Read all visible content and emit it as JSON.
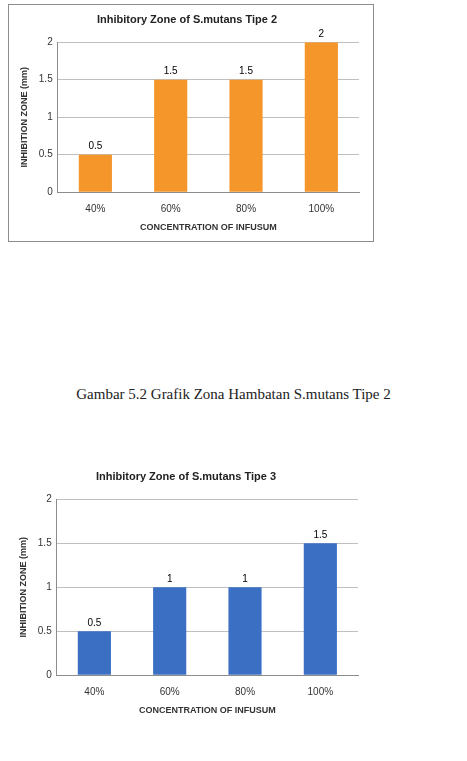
{
  "chart_data": [
    {
      "type": "bar",
      "title": "Inhibitory Zone of S.mutans Tipe 2",
      "x_label": "CONCENTRATION OF INFUSUM",
      "y_label": "INHIBITION ZONE (mm)",
      "caption": "Gambar 5.2 Grafik Zona Hambatan S.mutans Tipe 2",
      "categories": [
        "40%",
        "60%",
        "80%",
        "100%"
      ],
      "values": [
        0.5,
        1.5,
        1.5,
        2
      ],
      "color": "#f4962a",
      "ylim": [
        0,
        2
      ],
      "yticks": [
        0,
        0.5,
        1,
        1.5,
        2
      ],
      "grid": true,
      "data_labels": true
    },
    {
      "type": "bar",
      "title": "Inhibitory Zone of S.mutans Tipe 3",
      "x_label": "CONCENTRATION OF INFUSUM",
      "y_label": "INHIBITION ZONE (mm)",
      "categories": [
        "40%",
        "60%",
        "80%",
        "100%"
      ],
      "values": [
        0.5,
        1,
        1,
        1.5
      ],
      "color": "#3a6fc4",
      "ylim": [
        0,
        2
      ],
      "yticks": [
        0,
        0.5,
        1,
        1.5,
        2
      ],
      "grid": true,
      "data_labels": true
    }
  ]
}
